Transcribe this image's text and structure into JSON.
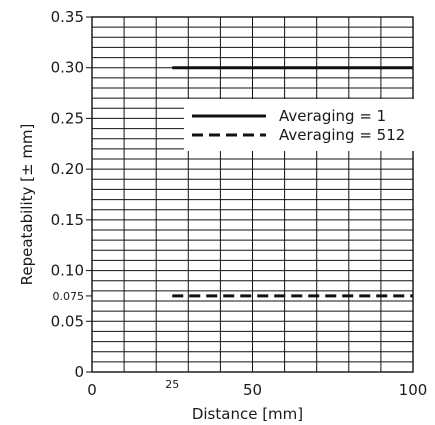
{
  "chart_data": {
    "type": "line",
    "xlabel": "Distance [mm]",
    "ylabel": "Repeatability [± mm]",
    "xlim": [
      0,
      100
    ],
    "ylim": [
      0,
      0.35
    ],
    "x_ticks": [
      {
        "value": 0,
        "label": "0",
        "size": "major"
      },
      {
        "value": 25,
        "label": "25",
        "size": "minor"
      },
      {
        "value": 50,
        "label": "50",
        "size": "major"
      },
      {
        "value": 100,
        "label": "100",
        "size": "major"
      }
    ],
    "y_ticks": [
      {
        "value": 0,
        "label": "0",
        "size": "major"
      },
      {
        "value": 0.05,
        "label": "0.05",
        "size": "major"
      },
      {
        "value": 0.075,
        "label": "0.075",
        "size": "minor"
      },
      {
        "value": 0.1,
        "label": "0.10",
        "size": "major"
      },
      {
        "value": 0.15,
        "label": "0.15",
        "size": "major"
      },
      {
        "value": 0.2,
        "label": "0.20",
        "size": "major"
      },
      {
        "value": 0.25,
        "label": "0.25",
        "size": "major"
      },
      {
        "value": 0.3,
        "label": "0.30",
        "size": "major"
      },
      {
        "value": 0.35,
        "label": "0.35",
        "size": "major"
      }
    ],
    "grid": {
      "x_step": 10,
      "y_step": 0.01,
      "shown": true
    },
    "series": [
      {
        "name": "Averaging = 1",
        "style": "solid",
        "x": [
          25,
          100
        ],
        "y": [
          0.3,
          0.3
        ]
      },
      {
        "name": "Averaging = 512",
        "style": "dashed",
        "x": [
          25,
          100
        ],
        "y": [
          0.075,
          0.075
        ]
      }
    ],
    "legend": {
      "placement": "upper-right"
    },
    "colors": {
      "line": "#111111",
      "grid": "#111111",
      "background": "#ffffff"
    }
  }
}
